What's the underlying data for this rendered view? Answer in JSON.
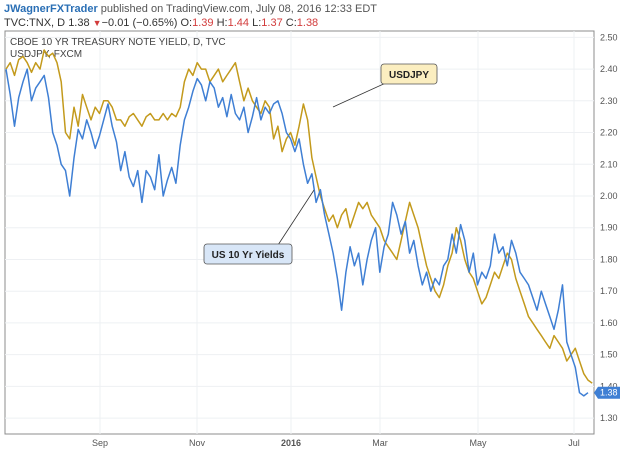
{
  "header": {
    "author": "JWagnerFXTrader",
    "published": "published on TradingView.com, July 08, 2016 12:33 EDT",
    "symbol": "TVC:TNX, D",
    "last": "1.38",
    "change": "−0.01 (−0.65%)",
    "o_label": "O:",
    "o_value": "1.39",
    "h_label": "H:",
    "h_value": "1.44",
    "l_label": "L:",
    "l_value": "1.37",
    "c_label": "C:",
    "c_value": "1.38"
  },
  "chart_data": {
    "type": "line",
    "title": "CBOE 10 YR TREASURY NOTE YIELD, D, TVC",
    "subtitle": "USDJPY, FXCM",
    "ylim": [
      1.25,
      2.52
    ],
    "yticks": [
      "2.50",
      "2.40",
      "2.30",
      "2.20",
      "2.10",
      "2.00",
      "1.90",
      "1.80",
      "1.70",
      "1.60",
      "1.50",
      "1.40",
      "1.30"
    ],
    "xticks": [
      "Sep",
      "Nov",
      "2016",
      "Mar",
      "May",
      "Jul"
    ],
    "last_value_label": "1.38",
    "annotations": [
      "USDJPY",
      "US 10 Yr Yields"
    ],
    "series": [
      {
        "name": "US 10 Yr Yields",
        "color": "#3f7fd4",
        "values": [
          2.4,
          2.32,
          2.22,
          2.31,
          2.36,
          2.4,
          2.3,
          2.34,
          2.36,
          2.38,
          2.31,
          2.2,
          2.16,
          2.1,
          2.08,
          2.0,
          2.12,
          2.21,
          2.18,
          2.24,
          2.2,
          2.15,
          2.19,
          2.24,
          2.29,
          2.22,
          2.17,
          2.08,
          2.14,
          2.06,
          2.03,
          2.08,
          1.98,
          2.08,
          2.06,
          2.02,
          2.13,
          2.0,
          2.05,
          2.09,
          2.04,
          2.16,
          2.24,
          2.28,
          2.33,
          2.37,
          2.35,
          2.3,
          2.36,
          2.34,
          2.28,
          2.31,
          2.25,
          2.32,
          2.26,
          2.24,
          2.28,
          2.2,
          2.25,
          2.31,
          2.24,
          2.28,
          2.26,
          2.29,
          2.3,
          2.26,
          2.2,
          2.18,
          2.14,
          2.18,
          2.1,
          2.04,
          2.07,
          1.98,
          2.02,
          1.94,
          1.88,
          1.82,
          1.74,
          1.64,
          1.76,
          1.84,
          1.78,
          1.82,
          1.72,
          1.8,
          1.86,
          1.9,
          1.76,
          1.84,
          1.88,
          1.98,
          1.94,
          1.88,
          1.92,
          1.82,
          1.86,
          1.78,
          1.72,
          1.76,
          1.7,
          1.74,
          1.72,
          1.78,
          1.8,
          1.88,
          1.82,
          1.91,
          1.86,
          1.76,
          1.82,
          1.72,
          1.76,
          1.74,
          1.78,
          1.88,
          1.82,
          1.84,
          1.78,
          1.86,
          1.82,
          1.76,
          1.74,
          1.72,
          1.68,
          1.64,
          1.7,
          1.66,
          1.62,
          1.58,
          1.64,
          1.72,
          1.54,
          1.5,
          1.46,
          1.38,
          1.37,
          1.38
        ]
      },
      {
        "name": "USDJPY",
        "color": "#c39a1c",
        "values": [
          2.4,
          2.42,
          2.38,
          2.43,
          2.44,
          2.42,
          2.39,
          2.42,
          2.4,
          2.46,
          2.44,
          2.45,
          2.42,
          2.36,
          2.2,
          2.18,
          2.28,
          2.22,
          2.32,
          2.28,
          2.24,
          2.28,
          2.26,
          2.3,
          2.3,
          2.28,
          2.24,
          2.24,
          2.22,
          2.25,
          2.26,
          2.24,
          2.22,
          2.25,
          2.26,
          2.24,
          2.24,
          2.26,
          2.24,
          2.26,
          2.25,
          2.28,
          2.36,
          2.4,
          2.38,
          2.42,
          2.4,
          2.4,
          2.36,
          2.38,
          2.4,
          2.36,
          2.38,
          2.4,
          2.42,
          2.36,
          2.3,
          2.34,
          2.3,
          2.28,
          2.26,
          2.3,
          2.28,
          2.18,
          2.22,
          2.14,
          2.18,
          2.2,
          2.16,
          2.22,
          2.29,
          2.24,
          2.12,
          2.06,
          2.0,
          1.96,
          1.92,
          1.94,
          1.9,
          1.94,
          1.96,
          1.9,
          1.94,
          1.98,
          1.96,
          1.98,
          1.94,
          1.92,
          1.9,
          1.86,
          1.84,
          1.82,
          1.8,
          1.86,
          1.92,
          1.98,
          1.94,
          1.9,
          1.84,
          1.78,
          1.74,
          1.7,
          1.68,
          1.72,
          1.78,
          1.82,
          1.9,
          1.86,
          1.8,
          1.76,
          1.74,
          1.7,
          1.66,
          1.68,
          1.72,
          1.76,
          1.74,
          1.78,
          1.82,
          1.8,
          1.74,
          1.7,
          1.66,
          1.62,
          1.6,
          1.58,
          1.56,
          1.54,
          1.52,
          1.56,
          1.54,
          1.52,
          1.48,
          1.5,
          1.52,
          1.48,
          1.44,
          1.42,
          1.41
        ]
      }
    ]
  }
}
